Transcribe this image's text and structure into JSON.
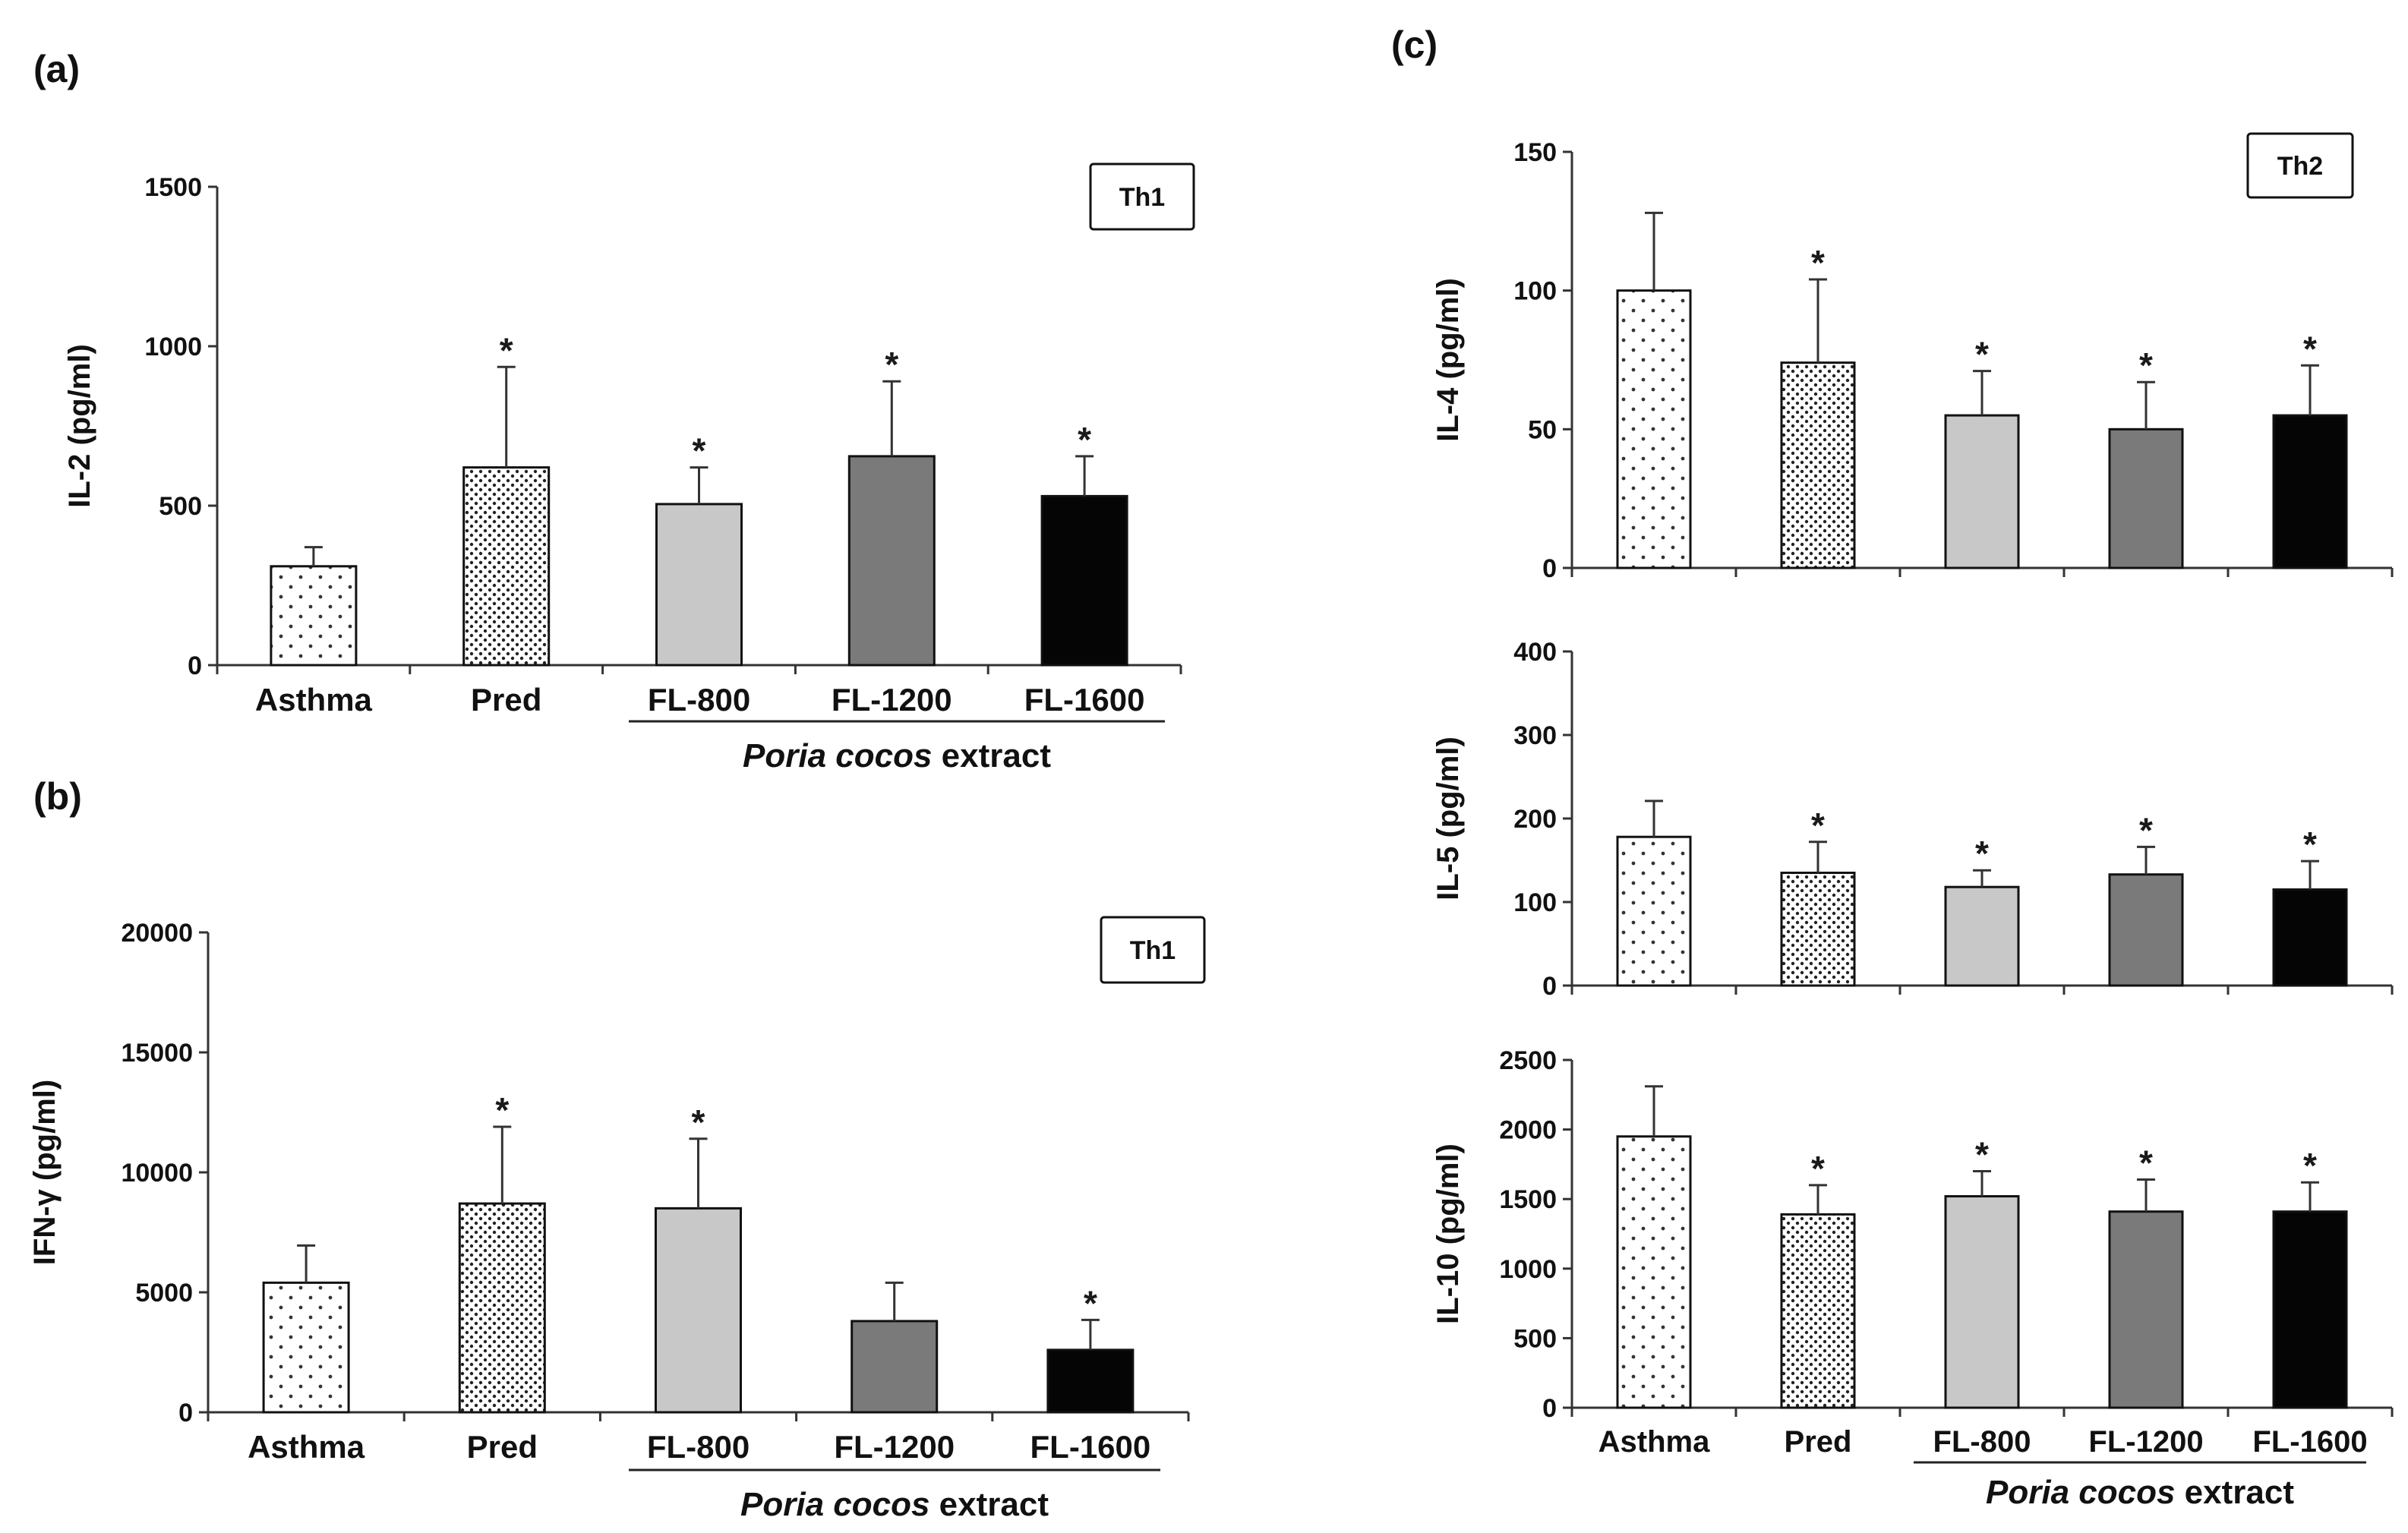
{
  "chart_data": [
    {
      "id": "a",
      "panel_label": "(a)",
      "type": "bar",
      "ylabel": "IL-2 (pg/ml)",
      "ylim": [
        0,
        1500
      ],
      "yticks": [
        0,
        500,
        1000,
        1500
      ],
      "badge": "Th1",
      "categories": [
        "Asthma",
        "Pred",
        "FL-800",
        "FL-1200",
        "FL-1600"
      ],
      "values": [
        310,
        620,
        505,
        655,
        530
      ],
      "errors": [
        60,
        315,
        115,
        235,
        125
      ],
      "significant": [
        false,
        true,
        true,
        true,
        true
      ],
      "sig_marker": "*",
      "group_label_italic": "Poria cocos",
      "group_label_rest": " extract",
      "group_members": [
        "FL-800",
        "FL-1200",
        "FL-1600"
      ]
    },
    {
      "id": "b",
      "panel_label": "(b)",
      "type": "bar",
      "ylabel": "IFN-γ (pg/ml)",
      "ylim": [
        0,
        20000
      ],
      "yticks": [
        0,
        5000,
        10000,
        15000,
        20000
      ],
      "badge": "Th1",
      "categories": [
        "Asthma",
        "Pred",
        "FL-800",
        "FL-1200",
        "FL-1600"
      ],
      "values": [
        5400,
        8700,
        8500,
        3800,
        2600
      ],
      "errors": [
        1550,
        3200,
        2900,
        1600,
        1250
      ],
      "significant": [
        false,
        true,
        true,
        false,
        true
      ],
      "sig_marker": "*",
      "group_label_italic": "Poria cocos",
      "group_label_rest": " extract",
      "group_members": [
        "FL-800",
        "FL-1200",
        "FL-1600"
      ]
    },
    {
      "id": "c-il4",
      "panel_label": "(c)",
      "type": "bar",
      "ylabel": "IL-4 (pg/ml)",
      "ylim": [
        0,
        150
      ],
      "yticks": [
        0,
        50,
        100,
        150
      ],
      "badge": "Th2",
      "categories": [
        "Asthma",
        "Pred",
        "FL-800",
        "FL-1200",
        "FL-1600"
      ],
      "values": [
        100,
        74,
        55,
        50,
        55
      ],
      "errors": [
        28,
        30,
        16,
        17,
        18
      ],
      "significant": [
        false,
        true,
        true,
        true,
        true
      ],
      "sig_marker": "*"
    },
    {
      "id": "c-il5",
      "type": "bar",
      "ylabel": "IL-5 (pg/ml)",
      "ylim": [
        0,
        400
      ],
      "yticks": [
        0,
        100,
        200,
        300,
        400
      ],
      "categories": [
        "Asthma",
        "Pred",
        "FL-800",
        "FL-1200",
        "FL-1600"
      ],
      "values": [
        178,
        135,
        118,
        133,
        115
      ],
      "errors": [
        43,
        37,
        20,
        33,
        34
      ],
      "significant": [
        false,
        true,
        true,
        true,
        true
      ],
      "sig_marker": "*"
    },
    {
      "id": "c-il10",
      "type": "bar",
      "ylabel": "IL-10 (pg/ml)",
      "ylim": [
        0,
        2500
      ],
      "yticks": [
        0,
        500,
        1000,
        1500,
        2000,
        2500
      ],
      "categories": [
        "Asthma",
        "Pred",
        "FL-800",
        "FL-1200",
        "FL-1600"
      ],
      "values": [
        1950,
        1390,
        1520,
        1410,
        1410
      ],
      "errors": [
        360,
        210,
        180,
        230,
        210
      ],
      "significant": [
        false,
        true,
        true,
        true,
        true
      ],
      "sig_marker": "*",
      "group_label_italic": "Poria cocos",
      "group_label_rest": " extract",
      "group_members": [
        "FL-800",
        "FL-1200",
        "FL-1600"
      ]
    }
  ]
}
